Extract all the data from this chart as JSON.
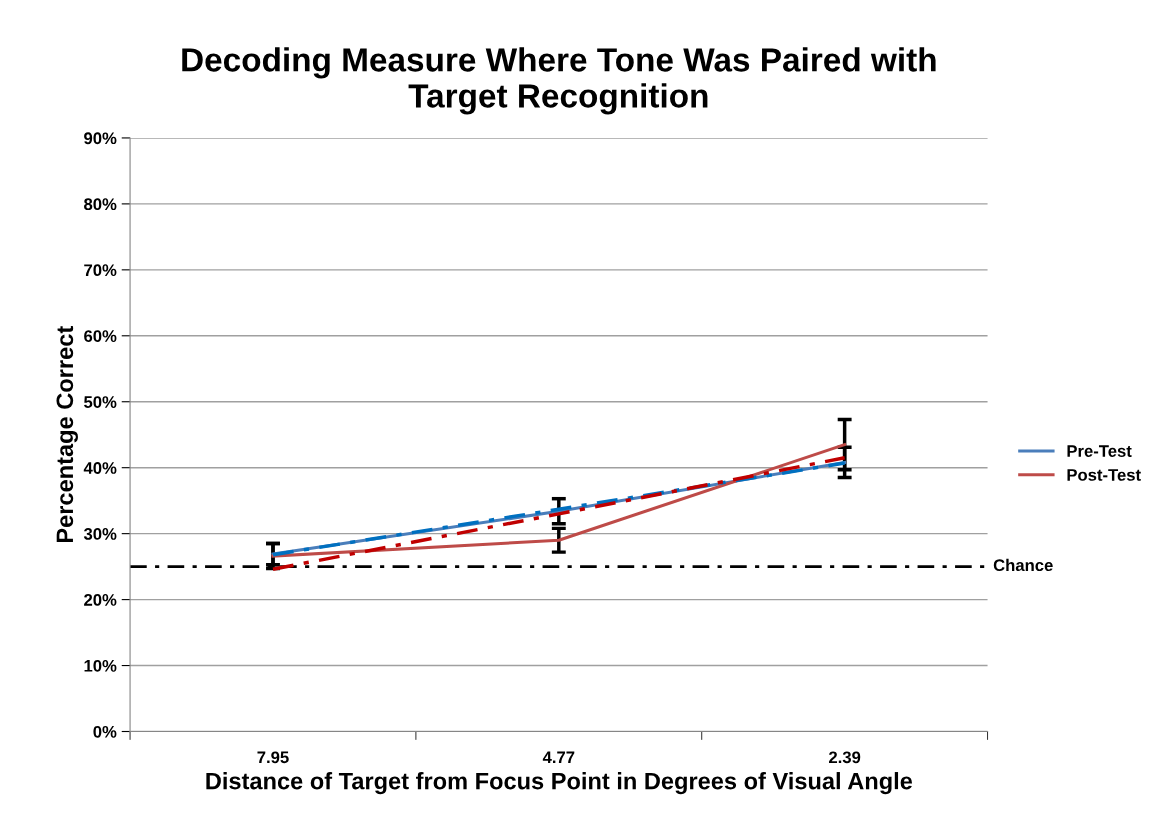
{
  "chart_data": {
    "type": "line",
    "title": "Decoding Measure Where Tone Was Paired with\nTarget Recognition",
    "xlabel": "Distance of Target from Focus Point in Degrees of Visual Angle",
    "ylabel": "Percentage Correct",
    "categories": [
      "7.95",
      "4.77",
      "2.39"
    ],
    "series": [
      {
        "name": "Pre-Test",
        "color": "#4a7ebb",
        "values": [
          26.9,
          33.4,
          40.8
        ],
        "errors": [
          1.6,
          1.9,
          2.3
        ]
      },
      {
        "name": "Post-Test",
        "color": "#be4b48",
        "values": [
          26.6,
          29.0,
          43.5
        ],
        "errors": [
          1.9,
          1.8,
          3.8
        ]
      },
      {
        "type": "line",
        "color": "#0070c0",
        "line_style": "dashed",
        "values": [
          26.8,
          33.7,
          40.7
        ]
      },
      {
        "type": "line",
        "color": "#c00000",
        "line_style": "dashed",
        "values": [
          24.6,
          33.0,
          41.5
        ]
      }
    ],
    "ylim": [
      0,
      90
    ],
    "yticks": [
      {
        "value": 0,
        "label": "0%"
      },
      {
        "value": 10,
        "label": "10%"
      },
      {
        "value": 20,
        "label": "20%"
      },
      {
        "value": 30,
        "label": "30%"
      },
      {
        "value": 40,
        "label": "40%"
      },
      {
        "value": 50,
        "label": "50%"
      },
      {
        "value": 60,
        "label": "60%"
      },
      {
        "value": 70,
        "label": "70%"
      },
      {
        "value": 80,
        "label": "80%"
      },
      {
        "value": 90,
        "label": "90%"
      }
    ],
    "ref_lines": [
      {
        "axis": "y",
        "value": 25,
        "label": "Chance",
        "color": "#000000",
        "line_style": "dashed"
      }
    ],
    "grid": "y",
    "legend": "right",
    "marker": "none",
    "line_style": "solid"
  }
}
